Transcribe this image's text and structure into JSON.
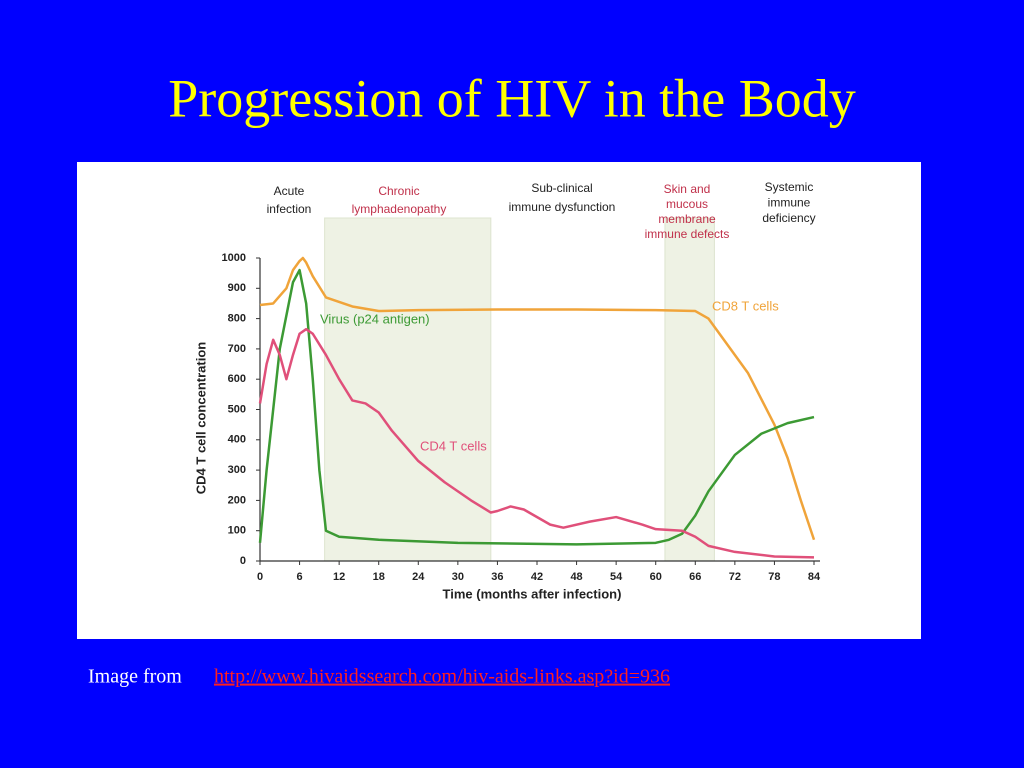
{
  "slide": {
    "title": "Progression of HIV in the Body",
    "caption": "Image from",
    "link": "http://www.hivaidssearch.com/hiv-aids-links.asp?id=936"
  },
  "chart_data": {
    "type": "line",
    "xlabel": "Time (months after infection)",
    "ylabel": "CD4 T cell concentration",
    "xlim": [
      0,
      84
    ],
    "ylim": [
      0,
      1000
    ],
    "xticks": [
      0,
      6,
      12,
      18,
      24,
      30,
      36,
      42,
      48,
      54,
      60,
      66,
      72,
      78,
      84
    ],
    "yticks": [
      0,
      100,
      200,
      300,
      400,
      500,
      600,
      700,
      800,
      900,
      1000
    ],
    "phases": [
      {
        "lines": [
          "Acute",
          "infection"
        ]
      },
      {
        "lines": [
          "Chronic",
          "lymphadenopathy"
        ],
        "shaded": [
          9.8,
          35
        ]
      },
      {
        "lines": [
          "Sub-clinical",
          "immune dysfunction"
        ]
      },
      {
        "lines": [
          "Skin and",
          "mucous",
          "membrane",
          "immune defects"
        ],
        "shaded": [
          61.4,
          68.9
        ]
      },
      {
        "lines": [
          "Systemic",
          "immune",
          "deficiency"
        ]
      }
    ],
    "shade_color": "#eef2e4",
    "series": [
      {
        "name": "CD8 T cells",
        "color": "#f0a43a",
        "x": [
          0,
          2,
          4,
          5,
          6,
          6.5,
          7,
          8,
          10,
          14,
          18,
          24,
          36,
          48,
          60,
          66,
          68,
          70,
          74,
          78,
          80,
          82,
          84
        ],
        "values": [
          845,
          850,
          900,
          960,
          990,
          1000,
          985,
          940,
          870,
          840,
          825,
          828,
          830,
          830,
          828,
          825,
          800,
          740,
          620,
          450,
          340,
          200,
          70
        ]
      },
      {
        "name": "Virus (p24 antigen)",
        "color": "#3c9a34",
        "x": [
          0,
          1,
          3,
          5,
          6,
          7,
          8,
          9,
          9.5,
          10,
          12,
          18,
          30,
          48,
          60,
          62,
          64,
          66,
          68,
          72,
          76,
          80,
          84
        ],
        "values": [
          60,
          300,
          700,
          920,
          960,
          850,
          600,
          300,
          200,
          100,
          80,
          70,
          60,
          55,
          60,
          70,
          90,
          150,
          230,
          350,
          420,
          455,
          475
        ]
      },
      {
        "name": "CD4 T cells",
        "color": "#e0507a",
        "x": [
          0,
          1,
          2,
          3,
          4,
          5,
          6,
          7,
          8,
          10,
          12,
          14,
          16,
          18,
          20,
          24,
          28,
          32,
          35,
          36,
          38,
          40,
          44,
          46,
          50,
          54,
          58,
          60,
          64,
          66,
          68,
          72,
          78,
          84
        ],
        "values": [
          520,
          650,
          730,
          680,
          600,
          680,
          750,
          765,
          750,
          680,
          600,
          530,
          520,
          490,
          430,
          330,
          260,
          200,
          160,
          165,
          180,
          170,
          120,
          110,
          130,
          145,
          120,
          105,
          100,
          80,
          50,
          30,
          15,
          12
        ]
      }
    ]
  }
}
